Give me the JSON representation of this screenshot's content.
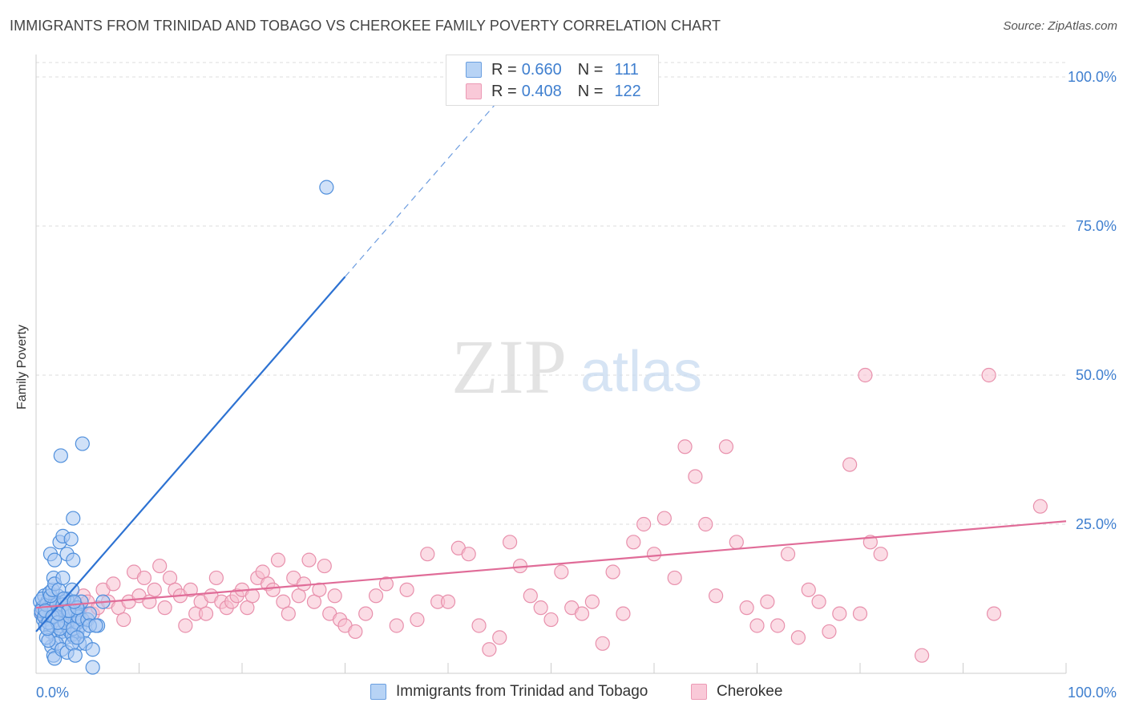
{
  "header": {
    "title": "IMMIGRANTS FROM TRINIDAD AND TOBAGO VS CHEROKEE FAMILY POVERTY CORRELATION CHART",
    "source": "Source: ZipAtlas.com"
  },
  "watermark": {
    "zip": "ZIP",
    "atlas": "atlas"
  },
  "legend": {
    "r_label": "R =",
    "n_label": "N =",
    "rows": [
      {
        "r": "0.660",
        "n": "111"
      },
      {
        "r": "0.408",
        "n": "122"
      }
    ]
  },
  "colors": {
    "blue_fill": "#a9c9f2",
    "blue_stroke": "#4f8fdc",
    "blue_line": "#2d72d2",
    "pink_fill": "#f7bfd0",
    "pink_stroke": "#e890ac",
    "pink_line": "#e06c98",
    "tick_label": "#3f7fcf",
    "grid": "#dddddd"
  },
  "chart_data": {
    "type": "scatter",
    "xlabel": "",
    "ylabel": "Family Poverty",
    "xlim": [
      0,
      100
    ],
    "ylim": [
      0,
      100
    ],
    "x_tick_labels": [
      "0.0%",
      "100.0%"
    ],
    "y_ticks": [
      {
        "value": 100,
        "label": "100.0%"
      },
      {
        "value": 75,
        "label": "75.0%"
      },
      {
        "value": 50,
        "label": "50.0%"
      },
      {
        "value": 25,
        "label": "25.0%"
      }
    ],
    "grid": true,
    "legend_position": "top-center",
    "series": [
      {
        "name": "Immigrants from Trinidad and Tobago",
        "r": 0.66,
        "n": 111,
        "trend": {
          "x0": 0,
          "y0": 7,
          "x1": 30,
          "y1": 66.5,
          "dashed_to_x": 45
        },
        "points": [
          [
            0.4,
            12
          ],
          [
            0.5,
            10
          ],
          [
            0.6,
            11
          ],
          [
            0.7,
            9
          ],
          [
            0.8,
            13
          ],
          [
            0.9,
            8
          ],
          [
            1.0,
            10
          ],
          [
            1.1,
            12
          ],
          [
            1.2,
            11
          ],
          [
            1.3,
            9
          ],
          [
            1.4,
            7
          ],
          [
            1.5,
            10
          ],
          [
            1.6,
            8
          ],
          [
            1.7,
            11
          ],
          [
            1.8,
            12
          ],
          [
            1.9,
            6
          ],
          [
            2.0,
            9
          ],
          [
            2.1,
            13
          ],
          [
            2.2,
            10
          ],
          [
            2.3,
            8
          ],
          [
            2.4,
            11
          ],
          [
            2.5,
            7
          ],
          [
            2.6,
            9
          ],
          [
            2.7,
            12
          ],
          [
            2.8,
            10
          ],
          [
            2.9,
            6
          ],
          [
            3.0,
            8
          ],
          [
            3.1,
            11
          ],
          [
            3.2,
            9
          ],
          [
            3.3,
            7
          ],
          [
            3.4,
            10
          ],
          [
            3.5,
            12
          ],
          [
            3.6,
            8
          ],
          [
            3.7,
            6
          ],
          [
            3.8,
            9
          ],
          [
            3.9,
            11
          ],
          [
            4.0,
            7
          ],
          [
            4.1,
            10
          ],
          [
            4.2,
            5
          ],
          [
            4.3,
            8
          ],
          [
            0.5,
            10.5
          ],
          [
            0.8,
            9.5
          ],
          [
            1.0,
            11.5
          ],
          [
            1.2,
            8.5
          ],
          [
            1.5,
            12.5
          ],
          [
            1.8,
            9.5
          ],
          [
            2.0,
            11.5
          ],
          [
            2.3,
            7.5
          ],
          [
            2.5,
            10.5
          ],
          [
            2.8,
            8.5
          ],
          [
            3.0,
            12.5
          ],
          [
            3.3,
            9.5
          ],
          [
            3.5,
            6.5
          ],
          [
            3.8,
            10.5
          ],
          [
            4.0,
            8.5
          ],
          [
            0.6,
            12.5
          ],
          [
            0.9,
            10.5
          ],
          [
            1.3,
            13.5
          ],
          [
            1.6,
            9.5
          ],
          [
            2.1,
            8.5
          ],
          [
            2.6,
            11.5
          ],
          [
            3.1,
            10.5
          ],
          [
            3.6,
            7.5
          ],
          [
            4.1,
            9.5
          ],
          [
            4.5,
            9
          ],
          [
            4.6,
            7
          ],
          [
            4.8,
            5
          ],
          [
            5.0,
            9
          ],
          [
            5.2,
            10
          ],
          [
            5.5,
            4
          ],
          [
            6.0,
            8
          ],
          [
            6.5,
            12
          ],
          [
            1.5,
            4.5
          ],
          [
            1.7,
            3
          ],
          [
            1.8,
            2.5
          ],
          [
            2.0,
            5
          ],
          [
            2.5,
            4
          ],
          [
            3.0,
            3.5
          ],
          [
            3.5,
            5
          ],
          [
            3.8,
            3
          ],
          [
            4.0,
            6
          ],
          [
            1.0,
            6
          ],
          [
            1.2,
            5.5
          ],
          [
            1.4,
            13
          ],
          [
            1.6,
            14
          ],
          [
            1.7,
            16
          ],
          [
            1.8,
            15
          ],
          [
            2.2,
            14
          ],
          [
            2.6,
            16
          ],
          [
            3.5,
            14
          ],
          [
            1.4,
            20
          ],
          [
            2.3,
            22
          ],
          [
            2.6,
            23
          ],
          [
            3.0,
            20
          ],
          [
            3.4,
            22.5
          ],
          [
            3.6,
            19
          ],
          [
            1.8,
            19
          ],
          [
            3.6,
            26
          ],
          [
            2.4,
            36.5
          ],
          [
            4.5,
            38.5
          ],
          [
            5.5,
            1
          ],
          [
            4.4,
            12
          ],
          [
            5.2,
            8
          ],
          [
            2.7,
            12.5
          ],
          [
            3.2,
            10.5
          ],
          [
            1.1,
            7.5
          ],
          [
            4.0,
            11
          ],
          [
            3.7,
            12
          ],
          [
            2.2,
            10
          ],
          [
            28.2,
            81.5
          ],
          [
            5.8,
            8
          ]
        ]
      },
      {
        "name": "Cherokee",
        "r": 0.408,
        "n": 122,
        "trend": {
          "x0": 0,
          "y0": 11,
          "x1": 100,
          "y1": 25.5
        },
        "points": [
          [
            0.6,
            10
          ],
          [
            0.8,
            11
          ],
          [
            1.0,
            9
          ],
          [
            1.2,
            10
          ],
          [
            1.5,
            11
          ],
          [
            1.8,
            10
          ],
          [
            2.0,
            12
          ],
          [
            2.3,
            9
          ],
          [
            2.6,
            11
          ],
          [
            3.0,
            10
          ],
          [
            3.4,
            12
          ],
          [
            3.8,
            10
          ],
          [
            4.2,
            11
          ],
          [
            4.6,
            13
          ],
          [
            5.0,
            12
          ],
          [
            5.5,
            10
          ],
          [
            6.0,
            11
          ],
          [
            6.5,
            14
          ],
          [
            7.0,
            12
          ],
          [
            7.5,
            15
          ],
          [
            8.0,
            11
          ],
          [
            8.5,
            9
          ],
          [
            9.0,
            12
          ],
          [
            9.5,
            17
          ],
          [
            10.0,
            13
          ],
          [
            10.5,
            16
          ],
          [
            11.0,
            12
          ],
          [
            11.5,
            14
          ],
          [
            12.0,
            18
          ],
          [
            12.5,
            11
          ],
          [
            13.0,
            16
          ],
          [
            13.5,
            14
          ],
          [
            14.0,
            13
          ],
          [
            14.5,
            8
          ],
          [
            15.0,
            14
          ],
          [
            15.5,
            10
          ],
          [
            16.0,
            12
          ],
          [
            16.5,
            10
          ],
          [
            17.0,
            13
          ],
          [
            17.5,
            16
          ],
          [
            18.0,
            12
          ],
          [
            18.5,
            11
          ],
          [
            19.0,
            12
          ],
          [
            19.5,
            13
          ],
          [
            20.0,
            14
          ],
          [
            20.5,
            11
          ],
          [
            21.0,
            13
          ],
          [
            21.5,
            16
          ],
          [
            22.0,
            17
          ],
          [
            22.5,
            15
          ],
          [
            23.0,
            14
          ],
          [
            23.5,
            19
          ],
          [
            24.0,
            12
          ],
          [
            24.5,
            10
          ],
          [
            25.0,
            16
          ],
          [
            25.5,
            13
          ],
          [
            26.0,
            15
          ],
          [
            26.5,
            19
          ],
          [
            27.0,
            12
          ],
          [
            27.5,
            14
          ],
          [
            28.0,
            18
          ],
          [
            28.5,
            10
          ],
          [
            29.0,
            13
          ],
          [
            29.5,
            9
          ],
          [
            30.0,
            8
          ],
          [
            31.0,
            7
          ],
          [
            32.0,
            10
          ],
          [
            33.0,
            13
          ],
          [
            34.0,
            15
          ],
          [
            35.0,
            8
          ],
          [
            36.0,
            14
          ],
          [
            37.0,
            9
          ],
          [
            38.0,
            20
          ],
          [
            39.0,
            12
          ],
          [
            40.0,
            12
          ],
          [
            41.0,
            21
          ],
          [
            42.0,
            20
          ],
          [
            43.0,
            8
          ],
          [
            44.0,
            4
          ],
          [
            45.0,
            6
          ],
          [
            46.0,
            22
          ],
          [
            47.0,
            18
          ],
          [
            48.0,
            13
          ],
          [
            49.0,
            11
          ],
          [
            50.0,
            9
          ],
          [
            51.0,
            17
          ],
          [
            52.0,
            11
          ],
          [
            53.0,
            10
          ],
          [
            54.0,
            12
          ],
          [
            55.0,
            5
          ],
          [
            56.0,
            17
          ],
          [
            57.0,
            10
          ],
          [
            58.0,
            22
          ],
          [
            59.0,
            25
          ],
          [
            60.0,
            20
          ],
          [
            61.0,
            26
          ],
          [
            62.0,
            16
          ],
          [
            63.0,
            38
          ],
          [
            64.0,
            33
          ],
          [
            65.0,
            25
          ],
          [
            66.0,
            13
          ],
          [
            67.0,
            38
          ],
          [
            68.0,
            22
          ],
          [
            69.0,
            11
          ],
          [
            70.0,
            8
          ],
          [
            71.0,
            12
          ],
          [
            72.0,
            8
          ],
          [
            73.0,
            20
          ],
          [
            74.0,
            6
          ],
          [
            75.0,
            14
          ],
          [
            76.0,
            12
          ],
          [
            77.0,
            7
          ],
          [
            78.0,
            10
          ],
          [
            79.0,
            35
          ],
          [
            80.0,
            10
          ],
          [
            81.0,
            22
          ],
          [
            82.0,
            20
          ],
          [
            80.5,
            50
          ],
          [
            92.5,
            50
          ],
          [
            97.5,
            28
          ],
          [
            93.0,
            10
          ],
          [
            86.0,
            3
          ]
        ]
      }
    ]
  }
}
